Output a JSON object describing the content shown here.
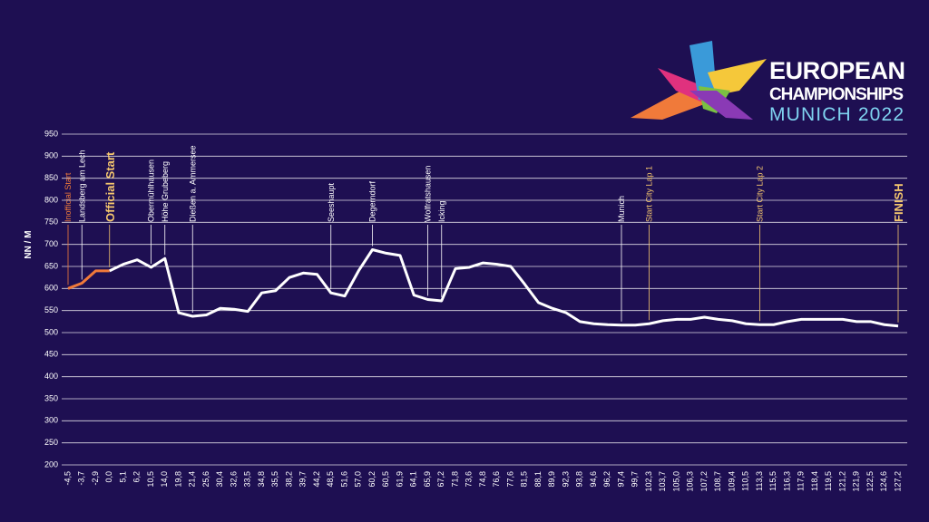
{
  "header": {
    "brand": [
      "EUROPEAN",
      "CHAMPIONSHIPS",
      "MUNICH 2022"
    ]
  },
  "chart_data": {
    "type": "line",
    "ylabel": "NN / M",
    "categories": [
      "-4,5",
      "-3,7",
      "-2,9",
      "0,0",
      "5,1",
      "6,2",
      "10,5",
      "14,0",
      "19,8",
      "21,4",
      "25,6",
      "30,4",
      "32,6",
      "33,5",
      "34,8",
      "35,5",
      "38,2",
      "39,7",
      "44,2",
      "48,5",
      "51,6",
      "57,0",
      "60,2",
      "60,5",
      "61,9",
      "64,1",
      "65,9",
      "67,2",
      "71,8",
      "73,6",
      "74,8",
      "76,6",
      "77,6",
      "81,5",
      "88,1",
      "89,9",
      "92,3",
      "93,8",
      "94,6",
      "96,2",
      "97,4",
      "99,7",
      "102,3",
      "103,7",
      "105,0",
      "106,3",
      "107,2",
      "108,7",
      "109,4",
      "110,5",
      "113,3",
      "115,5",
      "116,3",
      "117,9",
      "118,4",
      "119,5",
      "121,2",
      "121,9",
      "122,5",
      "124,6",
      "127,2"
    ],
    "series": [
      {
        "color": "#f07a3a",
        "values": [
          600,
          612,
          640,
          640,
          null,
          null,
          null,
          null,
          null,
          null,
          null,
          null,
          null,
          null,
          null,
          null,
          null,
          null,
          null,
          null,
          null,
          null,
          null,
          null,
          null,
          null,
          null,
          null,
          null,
          null,
          null,
          null,
          null,
          null,
          null,
          null,
          null,
          null,
          null,
          null,
          null,
          null,
          null,
          null,
          null,
          null,
          null,
          null,
          null,
          null,
          null,
          null,
          null,
          null,
          null,
          null,
          null,
          null,
          null,
          null,
          null
        ]
      },
      {
        "color": "#ffffff",
        "values": [
          null,
          null,
          null,
          640,
          655,
          665,
          648,
          668,
          545,
          537,
          540,
          555,
          553,
          548,
          590,
          595,
          625,
          635,
          632,
          590,
          583,
          640,
          688,
          680,
          675,
          585,
          575,
          572,
          645,
          648,
          658,
          655,
          650,
          610,
          568,
          555,
          545,
          525,
          520,
          518,
          517,
          517,
          520,
          527,
          530,
          530,
          535,
          530,
          527,
          520,
          518,
          518,
          525,
          530,
          530,
          530,
          530,
          525,
          525,
          518,
          515
        ]
      }
    ],
    "ylim": [
      200,
      950
    ],
    "yticks": [
      200,
      250,
      300,
      350,
      400,
      450,
      500,
      550,
      600,
      650,
      700,
      750,
      800,
      850,
      900,
      950
    ],
    "grid": true,
    "annotations": [
      {
        "text": "Inofficial Start",
        "x": "-4,5",
        "color": "#f07a3a"
      },
      {
        "text": "Landsberg am Lech",
        "x": "-3,7",
        "color": "#ffffff"
      },
      {
        "text": "Official Start",
        "x": "0,0",
        "color": "#f5c76e",
        "bold": true
      },
      {
        "text": "Obermühlhausen",
        "x": "10,5",
        "color": "#ffffff"
      },
      {
        "text": "Höhe Grubeberg",
        "x": "14,0",
        "color": "#ffffff"
      },
      {
        "text": "Dießen a. Ammersee",
        "x": "21,4",
        "color": "#ffffff"
      },
      {
        "text": "Seeshaupt",
        "x": "48,5",
        "color": "#ffffff"
      },
      {
        "text": "Degerndorf",
        "x": "60,2",
        "color": "#ffffff"
      },
      {
        "text": "Wolfratshausen",
        "x": "65,9",
        "color": "#ffffff"
      },
      {
        "text": "Icking",
        "x": "67,2",
        "color": "#ffffff"
      },
      {
        "text": "Munich",
        "x": "97,4",
        "color": "#ffffff"
      },
      {
        "text": "Start City Lap 1",
        "x": "102,3",
        "color": "#f5c76e"
      },
      {
        "text": "Start City Lap 2",
        "x": "113,3",
        "color": "#f5c76e"
      },
      {
        "text": "FINISH",
        "x": "127,2",
        "color": "#f5c76e",
        "bold": true
      }
    ]
  }
}
